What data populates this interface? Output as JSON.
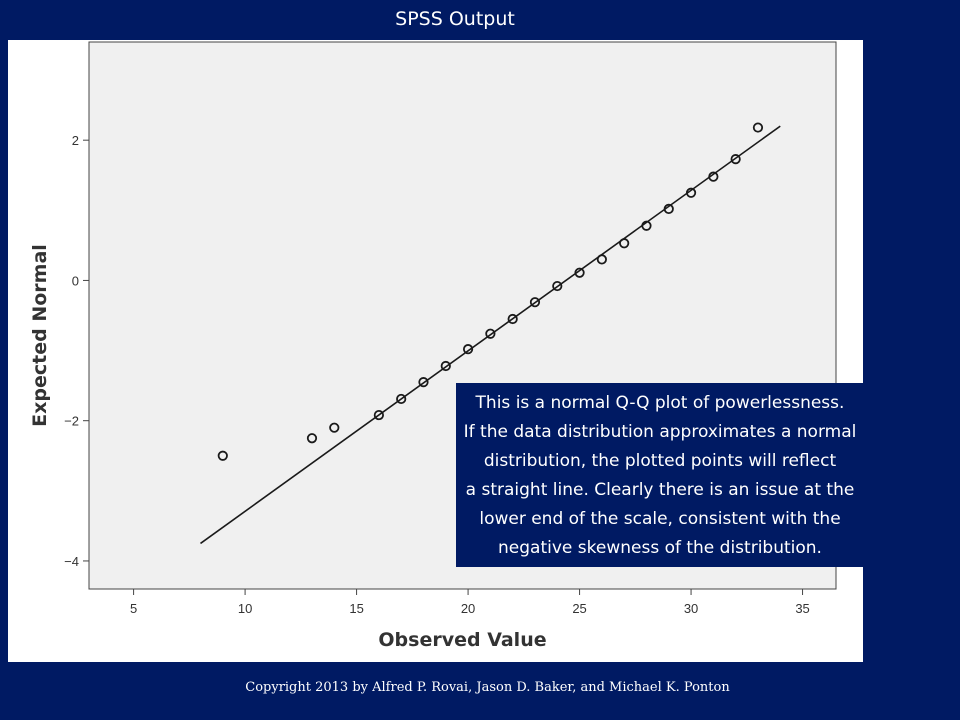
{
  "slide": {
    "title": "SPSS Output",
    "copyright": "Copyright 2013 by Alfred P. Rovai, Jason D. Baker, and Michael K. Ponton"
  },
  "callout": {
    "lines": [
      "This is a normal Q-Q plot of powerlessness.",
      "If the data distribution approximates a normal",
      "distribution, the plotted points will reflect",
      "a straight line. Clearly there is an issue at the",
      "lower end of the scale, consistent with the",
      "negative skewness of the distribution."
    ]
  },
  "colors": {
    "background": "#001a63",
    "plot_area": "#f0f0f0",
    "marks": "#1a1a1a"
  },
  "chart_data": {
    "type": "scatter",
    "title": "",
    "xlabel": "Observed Value",
    "ylabel": "Expected Normal",
    "xlim": [
      3,
      36.5
    ],
    "ylim": [
      -4.4,
      3.4
    ],
    "xticks": [
      5,
      10,
      15,
      20,
      25,
      30,
      35
    ],
    "yticks": [
      2,
      0,
      -2,
      -4
    ],
    "ytick_labels": [
      "2",
      "0",
      "−2",
      "−4"
    ],
    "grid": false,
    "points": [
      {
        "x": 9,
        "y": -2.5
      },
      {
        "x": 13,
        "y": -2.25
      },
      {
        "x": 14,
        "y": -2.1
      },
      {
        "x": 16,
        "y": -1.92
      },
      {
        "x": 17,
        "y": -1.69
      },
      {
        "x": 18,
        "y": -1.45
      },
      {
        "x": 19,
        "y": -1.22
      },
      {
        "x": 20,
        "y": -0.98
      },
      {
        "x": 21,
        "y": -0.76
      },
      {
        "x": 22,
        "y": -0.55
      },
      {
        "x": 23,
        "y": -0.31
      },
      {
        "x": 24,
        "y": -0.08
      },
      {
        "x": 25,
        "y": 0.11
      },
      {
        "x": 26,
        "y": 0.3
      },
      {
        "x": 27,
        "y": 0.53
      },
      {
        "x": 28,
        "y": 0.78
      },
      {
        "x": 29,
        "y": 1.02
      },
      {
        "x": 30,
        "y": 1.25
      },
      {
        "x": 31,
        "y": 1.48
      },
      {
        "x": 32,
        "y": 1.73
      },
      {
        "x": 33,
        "y": 2.18
      }
    ],
    "reference_line": {
      "x": [
        8,
        34
      ],
      "y": [
        -3.75,
        2.2
      ]
    }
  }
}
